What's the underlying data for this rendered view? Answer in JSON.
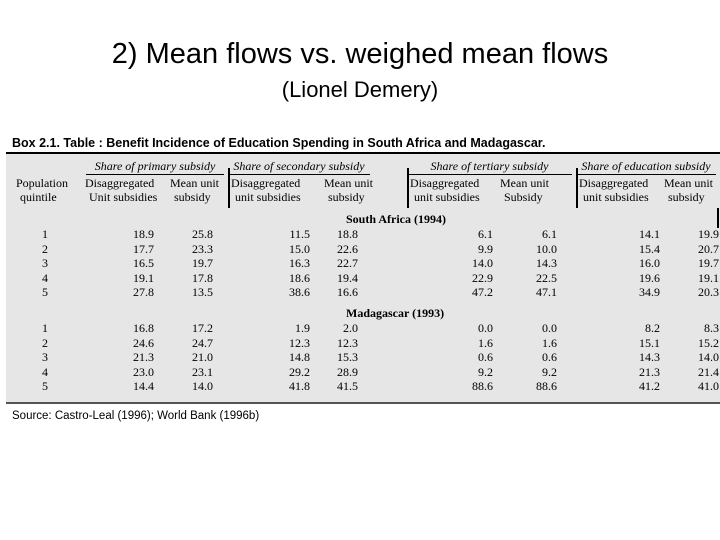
{
  "slide": {
    "title": "2) Mean flows vs. weighed mean flows",
    "subtitle": "(Lionel Demery)"
  },
  "box_title": "Box 2.1. Table :  Benefit Incidence of Education Spending in South Africa and Madagascar.",
  "source": "Source:  Castro-Leal (1996);  World Bank (1996b)",
  "table": {
    "groups": [
      "Share of primary subsidy",
      "Share of secondary subsidy",
      "Share of tertiary subsidy",
      "Share of education subsidy"
    ],
    "first_col_header": [
      "Population",
      "quintile"
    ],
    "col_headers": [
      [
        "Disaggregated",
        "Unit subsidies"
      ],
      [
        "Mean unit",
        "subsidy"
      ],
      [
        "Disaggregated",
        "unit subsidies"
      ],
      [
        "Mean unit",
        "subsidy"
      ],
      [
        "Disaggregated",
        "unit subsidies"
      ],
      [
        "Mean unit",
        "Subsidy"
      ],
      [
        "Disaggregated",
        "unit subsidies"
      ],
      [
        "Mean unit",
        "subsidy"
      ]
    ],
    "sections": [
      {
        "name": "South Africa (1994)",
        "rows": [
          {
            "q": "1",
            "v": [
              "18.9",
              "25.8",
              "11.5",
              "18.8",
              "6.1",
              "6.1",
              "14.1",
              "19.9"
            ]
          },
          {
            "q": "2",
            "v": [
              "17.7",
              "23.3",
              "15.0",
              "22.6",
              "9.9",
              "10.0",
              "15.4",
              "20.7"
            ]
          },
          {
            "q": "3",
            "v": [
              "16.5",
              "19.7",
              "16.3",
              "22.7",
              "14.0",
              "14.3",
              "16.0",
              "19.7"
            ]
          },
          {
            "q": "4",
            "v": [
              "19.1",
              "17.8",
              "18.6",
              "19.4",
              "22.9",
              "22.5",
              "19.6",
              "19.1"
            ]
          },
          {
            "q": "5",
            "v": [
              "27.8",
              "13.5",
              "38.6",
              "16.6",
              "47.2",
              "47.1",
              "34.9",
              "20.3"
            ]
          }
        ]
      },
      {
        "name": "Madagascar (1993)",
        "rows": [
          {
            "q": "1",
            "v": [
              "16.8",
              "17.2",
              "1.9",
              "2.0",
              "0.0",
              "0.0",
              "8.2",
              "8.3"
            ]
          },
          {
            "q": "2",
            "v": [
              "24.6",
              "24.7",
              "12.3",
              "12.3",
              "1.6",
              "1.6",
              "15.1",
              "15.2"
            ]
          },
          {
            "q": "3",
            "v": [
              "21.3",
              "21.0",
              "14.8",
              "15.3",
              "0.6",
              "0.6",
              "14.3",
              "14.0"
            ]
          },
          {
            "q": "4",
            "v": [
              "23.0",
              "23.1",
              "29.2",
              "28.9",
              "9.2",
              "9.2",
              "21.3",
              "21.4"
            ]
          },
          {
            "q": "5",
            "v": [
              "14.4",
              "14.0",
              "41.8",
              "41.5",
              "88.6",
              "88.6",
              "41.2",
              "41.0"
            ]
          }
        ]
      }
    ]
  }
}
